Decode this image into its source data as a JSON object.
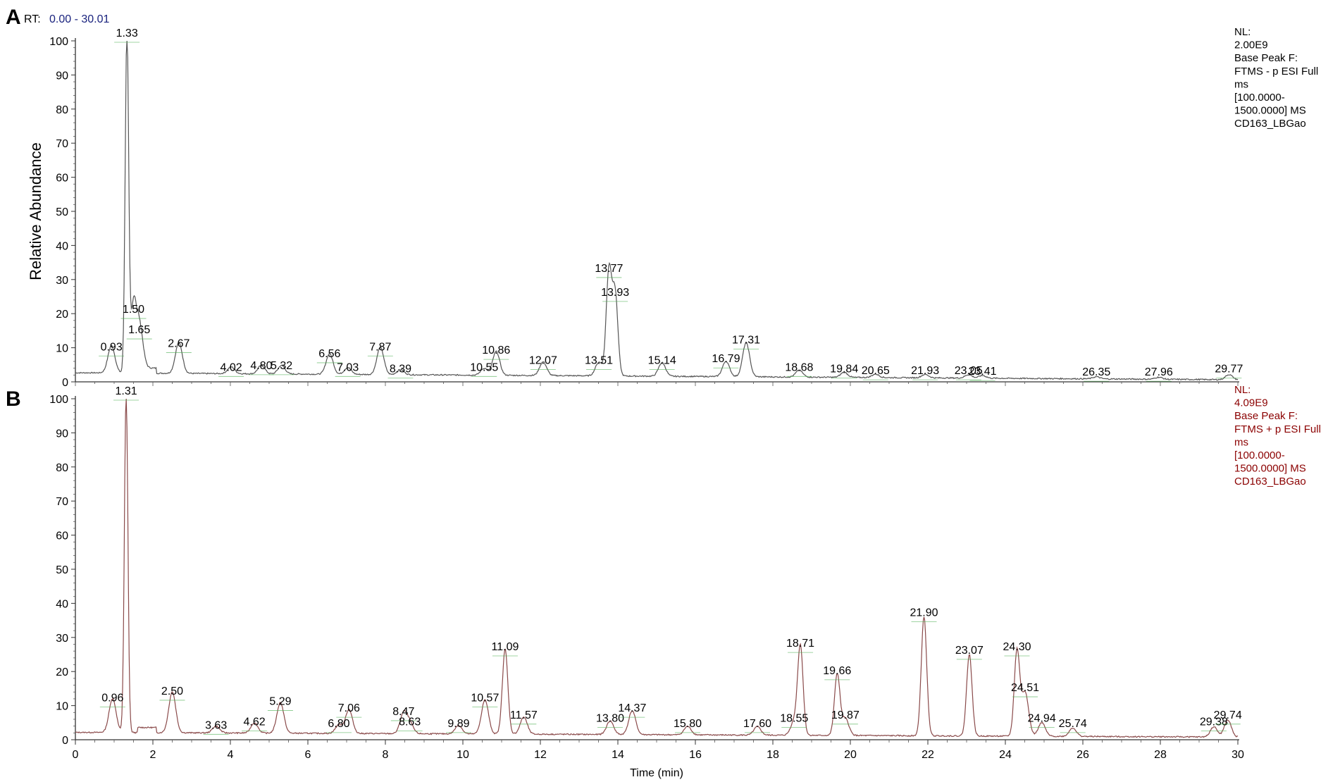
{
  "header": {
    "rt_label": "RT:",
    "rt_range": "0.00 - 30.01"
  },
  "colors": {
    "panel_a_trace": "#555555",
    "panel_b_trace": "#8a4a4a",
    "panel_b_info_text": "#8b0000",
    "rt_range_text": "#1a237e",
    "baseline_marker": "#4caf50"
  },
  "chart_data": [
    {
      "type": "line",
      "panel_label": "A",
      "xlabel": "",
      "ylabel": "Relative Abundance",
      "xlim": [
        0,
        30
      ],
      "ylim": [
        0,
        100
      ],
      "yticks": [
        0,
        10,
        20,
        30,
        40,
        50,
        60,
        70,
        80,
        90,
        100
      ],
      "xticks_shown": false,
      "info_lines": [
        "NL:",
        "2.00E9",
        "Base Peak F:",
        "FTMS - p ESI Full",
        "ms",
        "[100.0000-",
        "1500.0000]  MS",
        "CD163_LBGao"
      ],
      "peaks": [
        {
          "rt": 0.93,
          "label": "0.93",
          "intensity": 8
        },
        {
          "rt": 1.33,
          "label": "1.33",
          "intensity": 100
        },
        {
          "rt": 1.5,
          "label": "1.50",
          "intensity": 19
        },
        {
          "rt": 1.65,
          "label": "1.65",
          "intensity": 13
        },
        {
          "rt": 2.67,
          "label": "2.67",
          "intensity": 9
        },
        {
          "rt": 4.02,
          "label": "4.02",
          "intensity": 2
        },
        {
          "rt": 4.8,
          "label": "4.80",
          "intensity": 2.5
        },
        {
          "rt": 5.32,
          "label": "5.32",
          "intensity": 2.5
        },
        {
          "rt": 6.56,
          "label": "6.56",
          "intensity": 6
        },
        {
          "rt": 7.03,
          "label": "7.03",
          "intensity": 2
        },
        {
          "rt": 7.87,
          "label": "7.87",
          "intensity": 8
        },
        {
          "rt": 8.39,
          "label": "8.39",
          "intensity": 1.5
        },
        {
          "rt": 10.55,
          "label": "10.55",
          "intensity": 2
        },
        {
          "rt": 10.86,
          "label": "10.86",
          "intensity": 7
        },
        {
          "rt": 12.07,
          "label": "12.07",
          "intensity": 4
        },
        {
          "rt": 13.51,
          "label": "13.51",
          "intensity": 4
        },
        {
          "rt": 13.77,
          "label": "13.77",
          "intensity": 31
        },
        {
          "rt": 13.93,
          "label": "13.93",
          "intensity": 24
        },
        {
          "rt": 15.14,
          "label": "15.14",
          "intensity": 4
        },
        {
          "rt": 16.79,
          "label": "16.79",
          "intensity": 4.5
        },
        {
          "rt": 17.31,
          "label": "17.31",
          "intensity": 10
        },
        {
          "rt": 18.68,
          "label": "18.68",
          "intensity": 2
        },
        {
          "rt": 19.84,
          "label": "19.84",
          "intensity": 1.5
        },
        {
          "rt": 20.65,
          "label": "20.65",
          "intensity": 1
        },
        {
          "rt": 21.93,
          "label": "21.93",
          "intensity": 1
        },
        {
          "rt": 23.05,
          "label": "23.05",
          "intensity": 1
        },
        {
          "rt": 23.41,
          "label": "23.41",
          "intensity": 0.8
        },
        {
          "rt": 26.35,
          "label": "26.35",
          "intensity": 0.6
        },
        {
          "rt": 27.96,
          "label": "27.96",
          "intensity": 0.6
        },
        {
          "rt": 29.77,
          "label": "29.77",
          "intensity": 1.5
        }
      ]
    },
    {
      "type": "line",
      "panel_label": "B",
      "xlabel": "Time (min)",
      "ylabel": "",
      "xlim": [
        0,
        30
      ],
      "ylim": [
        0,
        100
      ],
      "yticks": [
        0,
        10,
        20,
        30,
        40,
        50,
        60,
        70,
        80,
        90,
        100
      ],
      "xticks": [
        0,
        2,
        4,
        6,
        8,
        10,
        12,
        14,
        16,
        18,
        20,
        22,
        24,
        26,
        28,
        30
      ],
      "xticks_shown": true,
      "info_lines": [
        "NL:",
        "4.09E9",
        "Base Peak F:",
        "FTMS + p ESI Full",
        "ms",
        "[100.0000-",
        "1500.0000]  MS",
        "CD163_LBGao"
      ],
      "peaks": [
        {
          "rt": 0.96,
          "label": "0.96",
          "intensity": 10
        },
        {
          "rt": 1.31,
          "label": "1.31",
          "intensity": 100
        },
        {
          "rt": 2.5,
          "label": "2.50",
          "intensity": 12
        },
        {
          "rt": 3.63,
          "label": "3.63",
          "intensity": 2
        },
        {
          "rt": 4.62,
          "label": "4.62",
          "intensity": 3
        },
        {
          "rt": 5.29,
          "label": "5.29",
          "intensity": 9
        },
        {
          "rt": 6.8,
          "label": "6.80",
          "intensity": 2.5
        },
        {
          "rt": 7.06,
          "label": "7.06",
          "intensity": 7
        },
        {
          "rt": 8.47,
          "label": "8.47",
          "intensity": 6
        },
        {
          "rt": 8.63,
          "label": "8.63",
          "intensity": 3
        },
        {
          "rt": 9.89,
          "label": "9.89",
          "intensity": 2.5
        },
        {
          "rt": 10.57,
          "label": "10.57",
          "intensity": 10
        },
        {
          "rt": 11.09,
          "label": "11.09",
          "intensity": 25
        },
        {
          "rt": 11.57,
          "label": "11.57",
          "intensity": 5
        },
        {
          "rt": 13.8,
          "label": "13.80",
          "intensity": 4
        },
        {
          "rt": 14.37,
          "label": "14.37",
          "intensity": 7
        },
        {
          "rt": 15.8,
          "label": "15.80",
          "intensity": 2.5
        },
        {
          "rt": 17.6,
          "label": "17.60",
          "intensity": 2.5
        },
        {
          "rt": 18.55,
          "label": "18.55",
          "intensity": 4
        },
        {
          "rt": 18.71,
          "label": "18.71",
          "intensity": 26
        },
        {
          "rt": 19.66,
          "label": "19.66",
          "intensity": 18
        },
        {
          "rt": 19.87,
          "label": "19.87",
          "intensity": 5
        },
        {
          "rt": 21.9,
          "label": "21.90",
          "intensity": 35
        },
        {
          "rt": 23.07,
          "label": "23.07",
          "intensity": 24
        },
        {
          "rt": 24.3,
          "label": "24.30",
          "intensity": 25
        },
        {
          "rt": 24.51,
          "label": "24.51",
          "intensity": 13
        },
        {
          "rt": 24.94,
          "label": "24.94",
          "intensity": 4
        },
        {
          "rt": 25.74,
          "label": "25.74",
          "intensity": 2.5
        },
        {
          "rt": 29.38,
          "label": "29.38",
          "intensity": 3
        },
        {
          "rt": 29.74,
          "label": "29.74",
          "intensity": 5
        }
      ]
    }
  ]
}
